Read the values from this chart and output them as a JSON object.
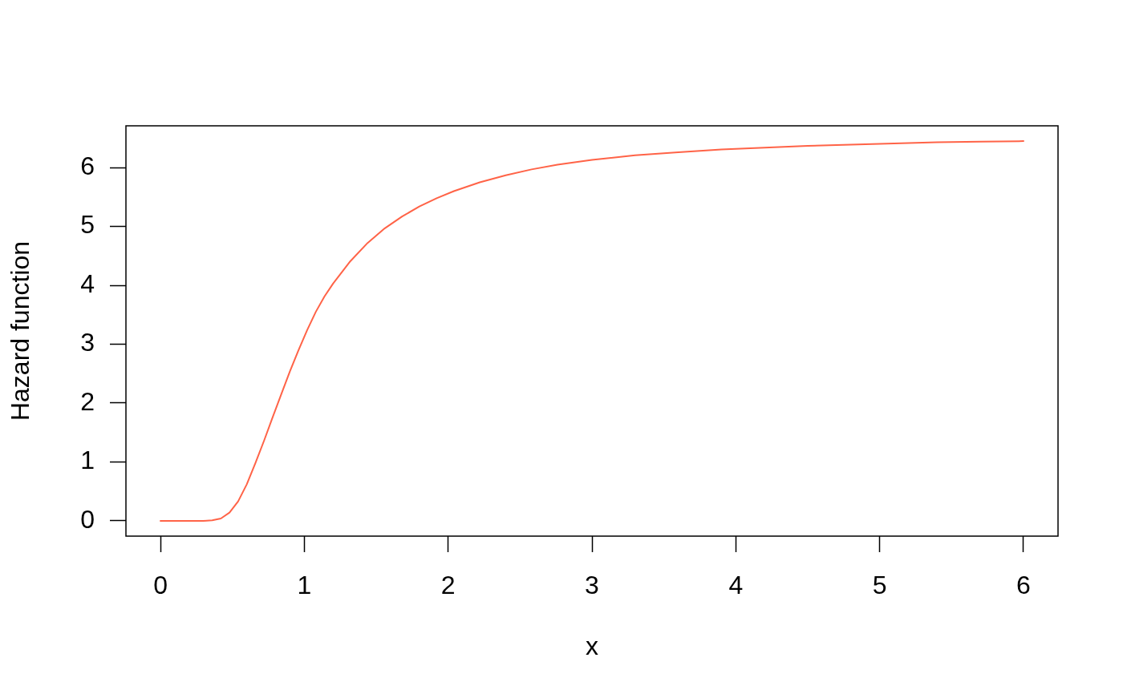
{
  "chart_data": {
    "type": "line",
    "xlabel": "x",
    "ylabel": "Hazard function",
    "x": [
      0,
      0.06,
      0.12,
      0.18,
      0.24,
      0.3,
      0.36,
      0.42,
      0.48,
      0.54,
      0.6,
      0.66,
      0.72,
      0.78,
      0.84,
      0.9,
      0.96,
      1.02,
      1.08,
      1.14,
      1.2,
      1.32,
      1.44,
      1.56,
      1.68,
      1.8,
      1.92,
      2.04,
      2.22,
      2.4,
      2.58,
      2.76,
      3.0,
      3.3,
      3.6,
      3.9,
      4.2,
      4.5,
      4.8,
      5.1,
      5.4,
      5.7,
      6.0
    ],
    "series": [
      {
        "color": "#ff6347",
        "values": [
          0,
          0,
          0,
          0,
          0,
          0,
          0.01,
          0.04,
          0.14,
          0.33,
          0.62,
          0.98,
          1.36,
          1.76,
          2.15,
          2.54,
          2.9,
          3.24,
          3.55,
          3.81,
          4.03,
          4.41,
          4.72,
          4.97,
          5.17,
          5.34,
          5.48,
          5.6,
          5.75,
          5.87,
          5.97,
          6.05,
          6.13,
          6.21,
          6.26,
          6.31,
          6.34,
          6.37,
          6.39,
          6.41,
          6.43,
          6.44,
          6.45
        ]
      }
    ],
    "xlim": [
      -0.24,
      6.24
    ],
    "ylim": [
      -0.26,
      6.71
    ],
    "xticks": [
      0,
      1,
      2,
      3,
      4,
      5,
      6
    ],
    "yticks": [
      0,
      1,
      2,
      3,
      4,
      5,
      6
    ],
    "marker": "none",
    "line_style": "solid"
  }
}
